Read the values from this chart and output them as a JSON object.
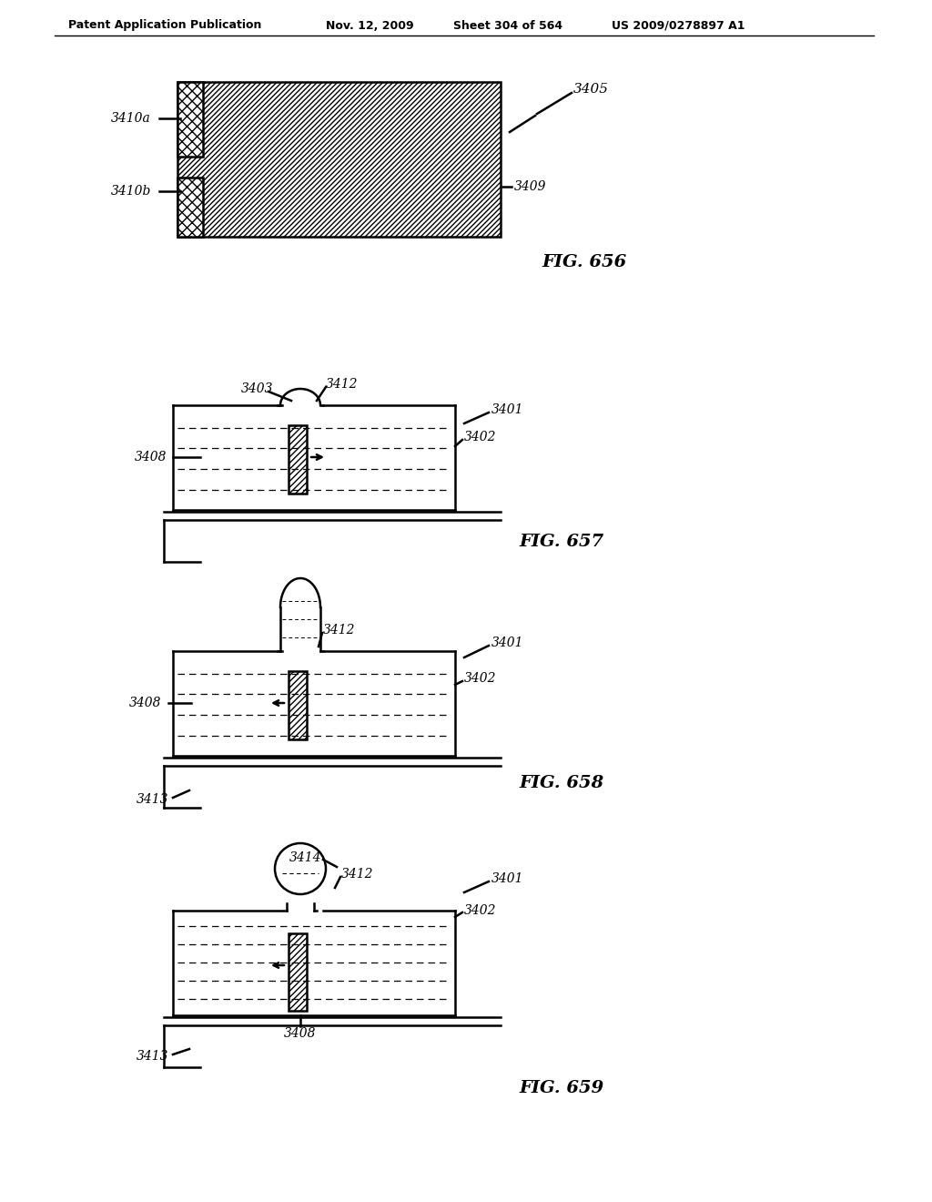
{
  "header_text": "Patent Application Publication",
  "header_date": "Nov. 12, 2009",
  "header_sheet": "Sheet 304 of 564",
  "header_patent": "US 2009/0278897 A1",
  "fig656_label": "FIG. 656",
  "fig657_label": "FIG. 657",
  "fig658_label": "FIG. 658",
  "fig659_label": "FIG. 659",
  "background_color": "#ffffff",
  "line_color": "#000000"
}
